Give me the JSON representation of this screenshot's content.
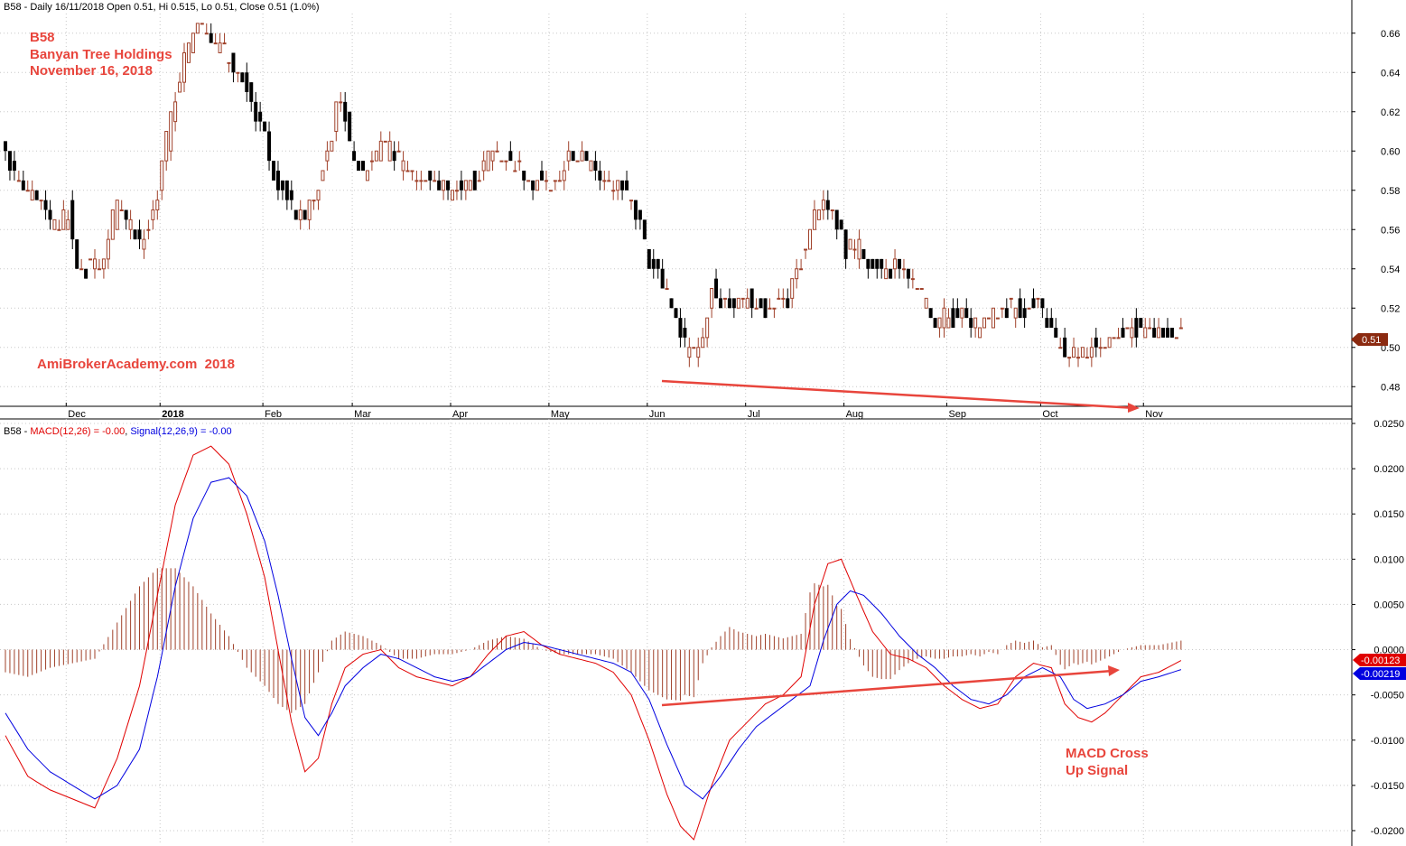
{
  "colors": {
    "up_candle": "#a0412a",
    "down_candle": "#000000",
    "macd_line": "#e00000",
    "signal_line": "#0000e0",
    "histogram": "#a0412a",
    "annotation": "#e8453c",
    "grid": "#c8c8c8",
    "price_badge": "#8b2a10",
    "macd_badge": "#e00000",
    "signal_badge": "#0000e0"
  },
  "price_header": "B58 - Daily 16/11/2018 Open 0.51, Hi 0.515, Lo 0.51, Close 0.51 (1.0%)",
  "macd_header": {
    "prefix": "B58 - ",
    "macd": "MACD(12,26) = -0.00",
    "sep": ", ",
    "signal": "Signal(12,26,9) = -0.00"
  },
  "annotations": {
    "ticker": "B58",
    "company": "Banyan Tree Holdings",
    "date": "November 16, 2018",
    "watermark": "AmiBrokerAcademy.com  2018",
    "macd_note_line1": "MACD Cross",
    "macd_note_line2": "Up Signal"
  },
  "badges": {
    "price": "0.51",
    "macd": "-0.00123",
    "signal": "-0.00219"
  },
  "chart_data": [
    {
      "type": "candlestick",
      "ylim": [
        0.47,
        0.67
      ],
      "price_ticks": [
        "0.66",
        "0.64",
        "0.62",
        "0.60",
        "0.58",
        "0.56",
        "0.54",
        "0.52",
        "0.50",
        "0.48"
      ],
      "months": [
        {
          "label": "Dec",
          "bar": 14
        },
        {
          "label": "2018",
          "bar": 35
        },
        {
          "label": "Feb",
          "bar": 58
        },
        {
          "label": "Mar",
          "bar": 78
        },
        {
          "label": "Apr",
          "bar": 100
        },
        {
          "label": "May",
          "bar": 122
        },
        {
          "label": "Jun",
          "bar": 144
        },
        {
          "label": "Jul",
          "bar": 166
        },
        {
          "label": "Aug",
          "bar": 188
        },
        {
          "label": "Sep",
          "bar": 211
        },
        {
          "label": "Oct",
          "bar": 232
        },
        {
          "label": "Nov",
          "bar": 255
        }
      ],
      "anchors": [
        [
          0,
          0.6
        ],
        [
          2,
          0.585
        ],
        [
          5,
          0.58
        ],
        [
          8,
          0.575
        ],
        [
          11,
          0.56
        ],
        [
          14,
          0.57
        ],
        [
          16,
          0.54
        ],
        [
          19,
          0.54
        ],
        [
          22,
          0.545
        ],
        [
          25,
          0.575
        ],
        [
          28,
          0.56
        ],
        [
          31,
          0.555
        ],
        [
          34,
          0.58
        ],
        [
          37,
          0.62
        ],
        [
          40,
          0.645
        ],
        [
          43,
          0.665
        ],
        [
          46,
          0.655
        ],
        [
          49,
          0.65
        ],
        [
          52,
          0.64
        ],
        [
          55,
          0.625
        ],
        [
          58,
          0.61
        ],
        [
          60,
          0.59
        ],
        [
          63,
          0.575
        ],
        [
          66,
          0.565
        ],
        [
          69,
          0.575
        ],
        [
          72,
          0.6
        ],
        [
          75,
          0.63
        ],
        [
          77,
          0.6
        ],
        [
          80,
          0.59
        ],
        [
          83,
          0.6
        ],
        [
          86,
          0.6
        ],
        [
          90,
          0.59
        ],
        [
          95,
          0.585
        ],
        [
          100,
          0.58
        ],
        [
          105,
          0.585
        ],
        [
          109,
          0.6
        ],
        [
          113,
          0.595
        ],
        [
          118,
          0.585
        ],
        [
          122,
          0.58
        ],
        [
          126,
          0.595
        ],
        [
          130,
          0.595
        ],
        [
          135,
          0.585
        ],
        [
          139,
          0.58
        ],
        [
          142,
          0.565
        ],
        [
          144,
          0.54
        ],
        [
          147,
          0.535
        ],
        [
          150,
          0.515
        ],
        [
          152,
          0.5
        ],
        [
          154,
          0.495
        ],
        [
          156,
          0.51
        ],
        [
          158,
          0.53
        ],
        [
          160,
          0.525
        ],
        [
          163,
          0.52
        ],
        [
          166,
          0.525
        ],
        [
          169,
          0.52
        ],
        [
          172,
          0.52
        ],
        [
          175,
          0.525
        ],
        [
          178,
          0.545
        ],
        [
          181,
          0.57
        ],
        [
          183,
          0.575
        ],
        [
          185,
          0.57
        ],
        [
          188,
          0.55
        ],
        [
          191,
          0.55
        ],
        [
          193,
          0.545
        ],
        [
          196,
          0.54
        ],
        [
          199,
          0.54
        ],
        [
          202,
          0.535
        ],
        [
          205,
          0.525
        ],
        [
          208,
          0.515
        ],
        [
          211,
          0.515
        ],
        [
          214,
          0.515
        ],
        [
          217,
          0.51
        ],
        [
          220,
          0.515
        ],
        [
          224,
          0.52
        ],
        [
          228,
          0.52
        ],
        [
          231,
          0.52
        ],
        [
          234,
          0.51
        ],
        [
          237,
          0.495
        ],
        [
          240,
          0.495
        ],
        [
          243,
          0.5
        ],
        [
          246,
          0.505
        ],
        [
          249,
          0.505
        ],
        [
          252,
          0.51
        ],
        [
          255,
          0.51
        ],
        [
          258,
          0.505
        ],
        [
          260,
          0.505
        ],
        [
          263,
          0.51
        ]
      ],
      "last": {
        "open": 0.51,
        "high": 0.515,
        "low": 0.51,
        "close": 0.51
      }
    },
    {
      "type": "line",
      "title": "MACD(12,26) / Signal(12,26,9)",
      "ylim": [
        -0.0215,
        0.0255
      ],
      "macd_ticks": [
        "0.0250",
        "0.0200",
        "0.0150",
        "0.0100",
        "0.0050",
        "0.0000",
        "-0.0050",
        "-0.0100",
        "-0.0150",
        "-0.0200"
      ],
      "series": [
        {
          "name": "MACD(12,26)",
          "values_anchors": [
            [
              0,
              -0.0095
            ],
            [
              5,
              -0.014
            ],
            [
              10,
              -0.0155
            ],
            [
              15,
              -0.0165
            ],
            [
              20,
              -0.0175
            ],
            [
              25,
              -0.012
            ],
            [
              30,
              -0.004
            ],
            [
              34,
              0.006
            ],
            [
              38,
              0.016
            ],
            [
              42,
              0.0215
            ],
            [
              46,
              0.0225
            ],
            [
              50,
              0.0205
            ],
            [
              54,
              0.015
            ],
            [
              58,
              0.008
            ],
            [
              61,
              0.0
            ],
            [
              64,
              -0.008
            ],
            [
              67,
              -0.0135
            ],
            [
              70,
              -0.012
            ],
            [
              73,
              -0.006
            ],
            [
              76,
              -0.002
            ],
            [
              80,
              -0.0005
            ],
            [
              84,
              0.0
            ],
            [
              88,
              -0.002
            ],
            [
              92,
              -0.003
            ],
            [
              96,
              -0.0035
            ],
            [
              100,
              -0.004
            ],
            [
              104,
              -0.003
            ],
            [
              108,
              -0.0005
            ],
            [
              112,
              0.0015
            ],
            [
              116,
              0.002
            ],
            [
              120,
              0.0005
            ],
            [
              124,
              -0.0005
            ],
            [
              128,
              -0.001
            ],
            [
              132,
              -0.0015
            ],
            [
              136,
              -0.0025
            ],
            [
              140,
              -0.005
            ],
            [
              144,
              -0.01
            ],
            [
              148,
              -0.016
            ],
            [
              151,
              -0.0195
            ],
            [
              154,
              -0.021
            ],
            [
              158,
              -0.015
            ],
            [
              162,
              -0.01
            ],
            [
              166,
              -0.008
            ],
            [
              170,
              -0.006
            ],
            [
              174,
              -0.005
            ],
            [
              178,
              -0.003
            ],
            [
              181,
              0.005
            ],
            [
              184,
              0.0095
            ],
            [
              187,
              0.01
            ],
            [
              190,
              0.0065
            ],
            [
              194,
              0.002
            ],
            [
              198,
              -0.0005
            ],
            [
              202,
              -0.001
            ],
            [
              206,
              -0.002
            ],
            [
              210,
              -0.004
            ],
            [
              214,
              -0.0055
            ],
            [
              218,
              -0.0065
            ],
            [
              222,
              -0.006
            ],
            [
              226,
              -0.003
            ],
            [
              230,
              -0.0015
            ],
            [
              234,
              -0.002
            ],
            [
              237,
              -0.006
            ],
            [
              240,
              -0.0075
            ],
            [
              243,
              -0.008
            ],
            [
              246,
              -0.007
            ],
            [
              250,
              -0.005
            ],
            [
              254,
              -0.003
            ],
            [
              258,
              -0.0025
            ],
            [
              263,
              -0.0012
            ]
          ]
        },
        {
          "name": "Signal(12,26,9)",
          "values_anchors": [
            [
              0,
              -0.007
            ],
            [
              5,
              -0.011
            ],
            [
              10,
              -0.0135
            ],
            [
              15,
              -0.015
            ],
            [
              20,
              -0.0165
            ],
            [
              25,
              -0.015
            ],
            [
              30,
              -0.011
            ],
            [
              34,
              -0.003
            ],
            [
              38,
              0.007
            ],
            [
              42,
              0.0145
            ],
            [
              46,
              0.0185
            ],
            [
              50,
              0.019
            ],
            [
              54,
              0.017
            ],
            [
              58,
              0.012
            ],
            [
              61,
              0.006
            ],
            [
              64,
              -0.001
            ],
            [
              67,
              -0.0075
            ],
            [
              70,
              -0.0095
            ],
            [
              73,
              -0.007
            ],
            [
              76,
              -0.004
            ],
            [
              80,
              -0.002
            ],
            [
              84,
              -0.0005
            ],
            [
              88,
              -0.001
            ],
            [
              92,
              -0.002
            ],
            [
              96,
              -0.003
            ],
            [
              100,
              -0.0035
            ],
            [
              104,
              -0.003
            ],
            [
              108,
              -0.0015
            ],
            [
              112,
              0.0
            ],
            [
              116,
              0.0008
            ],
            [
              120,
              0.0005
            ],
            [
              124,
              0.0
            ],
            [
              128,
              -0.0005
            ],
            [
              132,
              -0.001
            ],
            [
              136,
              -0.0015
            ],
            [
              140,
              -0.0025
            ],
            [
              144,
              -0.0055
            ],
            [
              148,
              -0.0105
            ],
            [
              152,
              -0.015
            ],
            [
              156,
              -0.0165
            ],
            [
              160,
              -0.014
            ],
            [
              164,
              -0.011
            ],
            [
              168,
              -0.0085
            ],
            [
              172,
              -0.007
            ],
            [
              176,
              -0.0055
            ],
            [
              180,
              -0.004
            ],
            [
              183,
              0.001
            ],
            [
              186,
              0.005
            ],
            [
              189,
              0.0065
            ],
            [
              192,
              0.006
            ],
            [
              196,
              0.004
            ],
            [
              200,
              0.0015
            ],
            [
              204,
              -0.0005
            ],
            [
              208,
              -0.002
            ],
            [
              212,
              -0.004
            ],
            [
              216,
              -0.0055
            ],
            [
              220,
              -0.006
            ],
            [
              224,
              -0.005
            ],
            [
              228,
              -0.003
            ],
            [
              232,
              -0.002
            ],
            [
              236,
              -0.003
            ],
            [
              239,
              -0.0055
            ],
            [
              242,
              -0.0065
            ],
            [
              246,
              -0.006
            ],
            [
              250,
              -0.005
            ],
            [
              254,
              -0.0035
            ],
            [
              258,
              -0.003
            ],
            [
              263,
              -0.0022
            ]
          ]
        }
      ]
    }
  ]
}
